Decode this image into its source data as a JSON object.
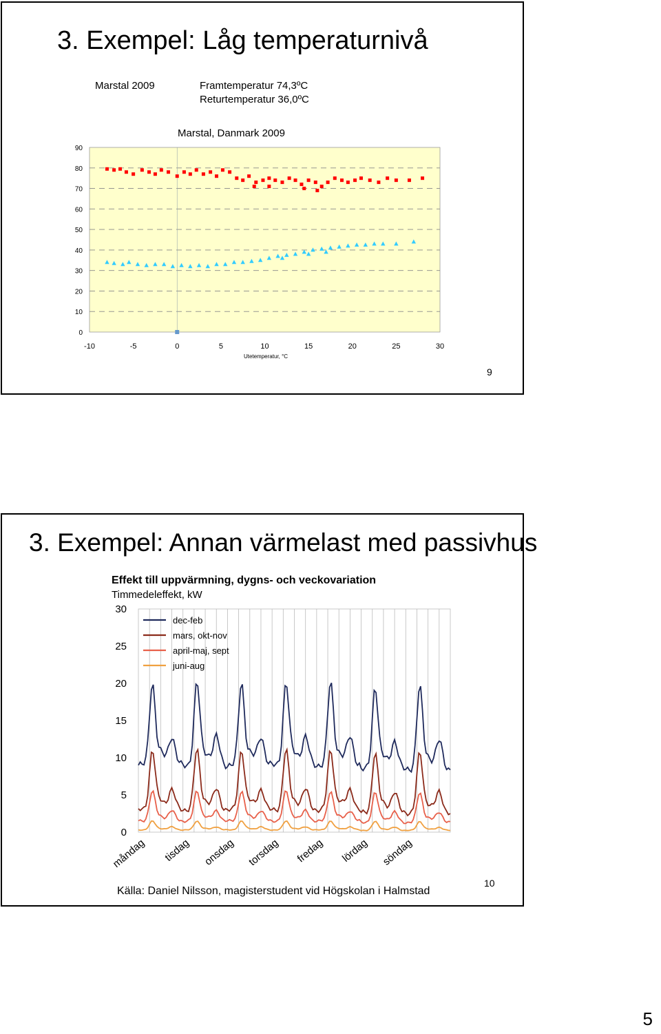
{
  "slide1": {
    "title": "3. Exempel: Låg temperaturnivå",
    "caption_location": "Marstal 2009",
    "caption_supply": "Framtemperatur 74,3ºC",
    "caption_return": "Returtemperatur 36,0ºC",
    "slide_number": "9"
  },
  "slide2": {
    "title": "3. Exempel: Annan värmelast med passivhus",
    "source": "Källa: Daniel Nilsson, magisterstudent vid Högskolan i Halmstad",
    "slide_number": "10"
  },
  "page_number": "5",
  "chart_data": [
    {
      "type": "scatter",
      "title": "Marstal, Danmark 2009",
      "xlabel": "Utetemperatur, °C",
      "ylabel": "",
      "xlim": [
        -10,
        30
      ],
      "ylim": [
        0,
        90
      ],
      "x_ticks": [
        -10,
        -5,
        0,
        5,
        10,
        15,
        20,
        25,
        30
      ],
      "y_ticks": [
        0,
        10,
        20,
        30,
        40,
        50,
        60,
        70,
        80,
        90
      ],
      "grid": "horizontal dashed",
      "background": "#ffffcc",
      "series": [
        {
          "marker": "square",
          "color": "#ff0000",
          "points": [
            [
              -8,
              79.5
            ],
            [
              -7.2,
              79
            ],
            [
              -6.5,
              79.5
            ],
            [
              -5.8,
              78
            ],
            [
              -5,
              77
            ],
            [
              -4,
              79
            ],
            [
              -3.2,
              78
            ],
            [
              -2.5,
              77
            ],
            [
              -1.8,
              79
            ],
            [
              -1,
              78
            ],
            [
              0,
              76
            ],
            [
              0.8,
              78
            ],
            [
              1.5,
              77
            ],
            [
              2.2,
              79
            ],
            [
              3,
              77
            ],
            [
              3.8,
              78
            ],
            [
              4.5,
              76
            ],
            [
              5.2,
              79
            ],
            [
              6,
              78
            ],
            [
              6.8,
              75
            ],
            [
              7.5,
              74
            ],
            [
              8.2,
              76
            ],
            [
              9,
              73
            ],
            [
              9.8,
              74
            ],
            [
              10.5,
              75
            ],
            [
              11.2,
              74
            ],
            [
              12,
              73
            ],
            [
              12.8,
              75
            ],
            [
              13.5,
              74
            ],
            [
              14.2,
              72
            ],
            [
              15,
              74
            ],
            [
              15.8,
              73
            ],
            [
              16.5,
              71
            ],
            [
              17.2,
              73
            ],
            [
              18,
              75
            ],
            [
              18.8,
              74
            ],
            [
              19.5,
              73
            ],
            [
              20.3,
              74
            ],
            [
              21,
              75
            ],
            [
              22,
              74
            ],
            [
              23,
              73
            ],
            [
              24,
              75
            ],
            [
              25,
              74
            ],
            [
              26.5,
              74
            ],
            [
              28,
              75
            ],
            [
              10.5,
              71
            ],
            [
              14.5,
              70
            ],
            [
              16,
              69
            ],
            [
              8.8,
              71
            ]
          ]
        },
        {
          "marker": "triangle",
          "color": "#33ccff",
          "points": [
            [
              -8,
              34
            ],
            [
              -7.2,
              33.5
            ],
            [
              -6.2,
              33
            ],
            [
              -5.5,
              34
            ],
            [
              -4.5,
              33
            ],
            [
              -3.5,
              32.5
            ],
            [
              -2.5,
              33
            ],
            [
              -1.5,
              33
            ],
            [
              -0.5,
              32
            ],
            [
              0.5,
              32.5
            ],
            [
              1.5,
              32
            ],
            [
              2.5,
              32.5
            ],
            [
              3.5,
              32
            ],
            [
              4.5,
              33
            ],
            [
              5.5,
              33
            ],
            [
              6.5,
              34
            ],
            [
              7.5,
              34
            ],
            [
              8.5,
              34.5
            ],
            [
              9.5,
              35
            ],
            [
              10.5,
              36
            ],
            [
              11.5,
              37
            ],
            [
              12.5,
              37.5
            ],
            [
              13.5,
              38
            ],
            [
              14.5,
              39
            ],
            [
              15.5,
              40
            ],
            [
              16.5,
              40.5
            ],
            [
              17.5,
              41
            ],
            [
              18.5,
              41.5
            ],
            [
              19.5,
              42
            ],
            [
              20.5,
              42.5
            ],
            [
              21.5,
              42.5
            ],
            [
              22.5,
              43
            ],
            [
              23.5,
              43
            ],
            [
              25,
              43
            ],
            [
              27,
              44
            ],
            [
              12,
              36
            ],
            [
              15,
              38
            ],
            [
              17,
              39
            ]
          ]
        }
      ],
      "extra_point": {
        "x": 0,
        "y": 0,
        "color": "#6699cc"
      }
    },
    {
      "type": "line",
      "title": "Effekt till uppvärmning, dygns- och veckovariation",
      "subtitle": "Timmedeleffekt, kW",
      "ylabel": "Timmedeleffekt, kW",
      "ylim": [
        0,
        30
      ],
      "y_ticks": [
        0,
        5,
        10,
        15,
        20,
        25,
        30
      ],
      "categories": [
        "måndag",
        "tisdag",
        "onsdag",
        "torsdag",
        "fredag",
        "lördag",
        "söndag"
      ],
      "grid": "vertical day separators",
      "legend_position": "top-left",
      "series": [
        {
          "name": "dec-feb",
          "color": "#1f2a5c",
          "base": 9,
          "peak": 20,
          "trough": 9.5
        },
        {
          "name": "mars, okt-nov",
          "color": "#8b2a1a",
          "base": 3,
          "peak": 11,
          "trough": 3.5
        },
        {
          "name": "april-maj, sept",
          "color": "#e8604a",
          "base": 1.5,
          "peak": 5.5,
          "trough": 1.8
        },
        {
          "name": "juni-aug",
          "color": "#f0a040",
          "base": 0.3,
          "peak": 1.5,
          "trough": 0.5
        }
      ]
    }
  ]
}
